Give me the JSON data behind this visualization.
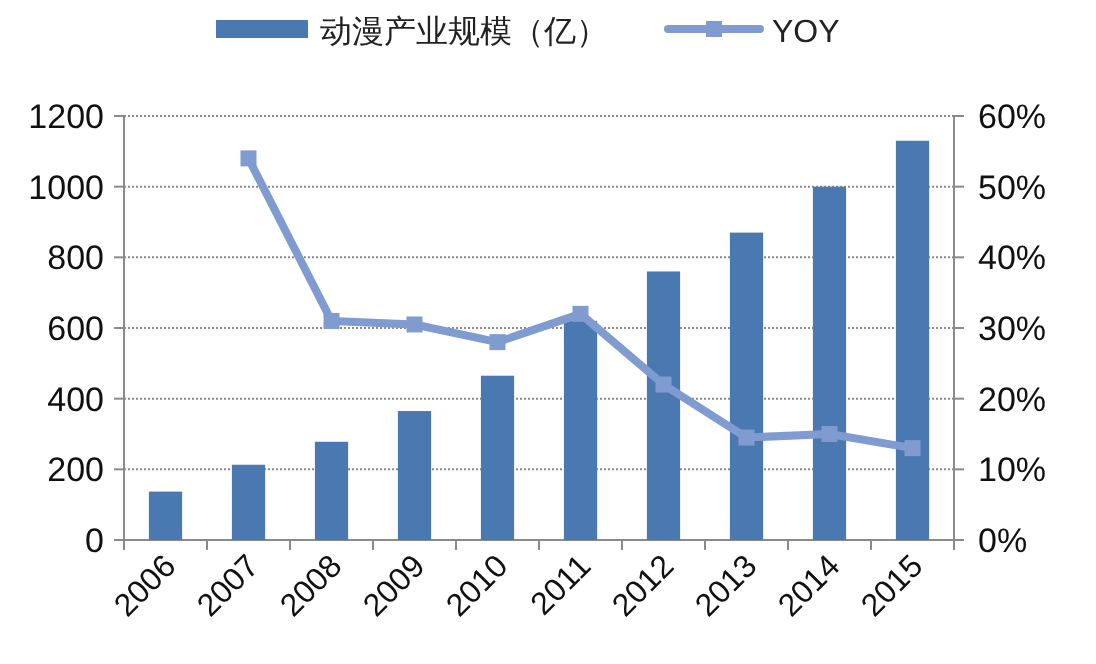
{
  "chart_data": {
    "type": "bar",
    "categories": [
      "2006",
      "2007",
      "2008",
      "2009",
      "2010",
      "2011",
      "2012",
      "2013",
      "2014",
      "2015"
    ],
    "series": [
      {
        "name": "动漫产业规模（亿）",
        "color": "#4a78b0",
        "values": [
          137,
          213,
          278,
          365,
          465,
          620,
          760,
          870,
          1000,
          1130
        ]
      },
      {
        "name": "YOY",
        "type": "line",
        "axis": "y2",
        "color": "#7f9bd0",
        "marker": "square",
        "values": [
          null,
          54,
          31,
          30.5,
          28,
          32,
          22,
          14.5,
          15,
          13
        ]
      }
    ],
    "ylim": [
      0,
      1200
    ],
    "yticks": [
      0,
      200,
      400,
      600,
      800,
      1000,
      1200
    ],
    "y2lim": [
      0,
      60
    ],
    "y2ticks": [
      {
        "value": 0,
        "label": "0%"
      },
      {
        "value": 10,
        "label": "10%"
      },
      {
        "value": 20,
        "label": "20%"
      },
      {
        "value": 30,
        "label": "30%"
      },
      {
        "value": 40,
        "label": "40%"
      },
      {
        "value": 50,
        "label": "50%"
      },
      {
        "value": 60,
        "label": "60%"
      }
    ],
    "grid": "y",
    "legend": "top"
  }
}
